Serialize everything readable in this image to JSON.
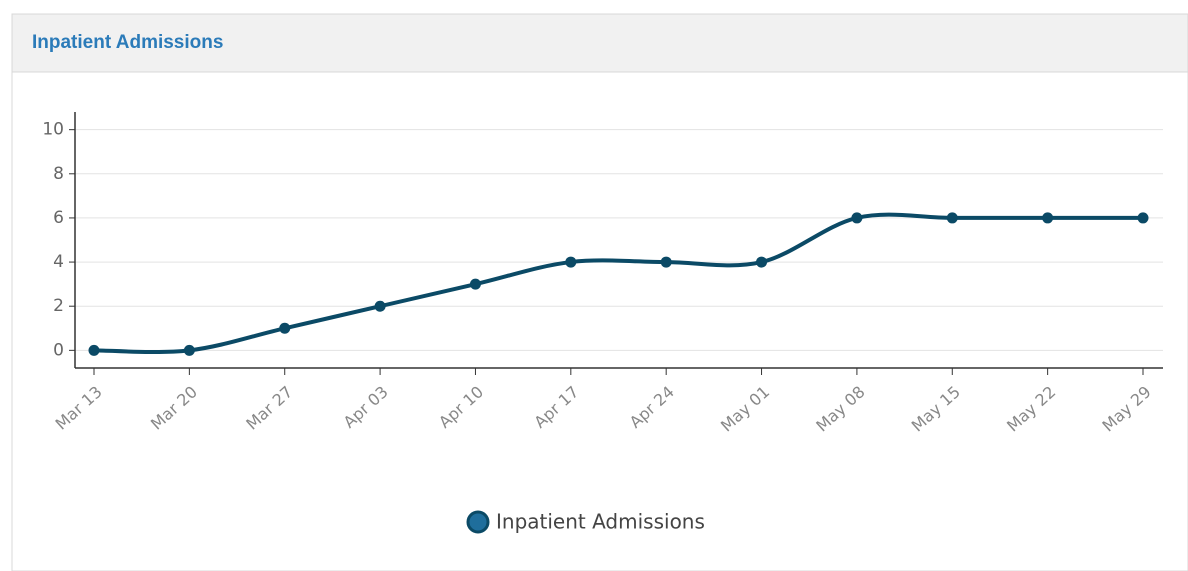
{
  "chart_data": {
    "type": "line",
    "title": "Inpatient Admissions",
    "categories": [
      "Mar 13",
      "Mar 20",
      "Mar 27",
      "Apr 03",
      "Apr 10",
      "Apr 17",
      "Apr 24",
      "May 01",
      "May 08",
      "May 15",
      "May 22",
      "May 29"
    ],
    "series": [
      {
        "name": "Inpatient Admissions",
        "color": "#0b4a66",
        "values": [
          0,
          0,
          1,
          2,
          3,
          4,
          4,
          4,
          6,
          6,
          6,
          6
        ]
      }
    ],
    "ylim": [
      -0.8,
      10.8
    ],
    "yticks": [
      0,
      2,
      4,
      6,
      8,
      10
    ],
    "grid": true,
    "legend": "bottom"
  }
}
